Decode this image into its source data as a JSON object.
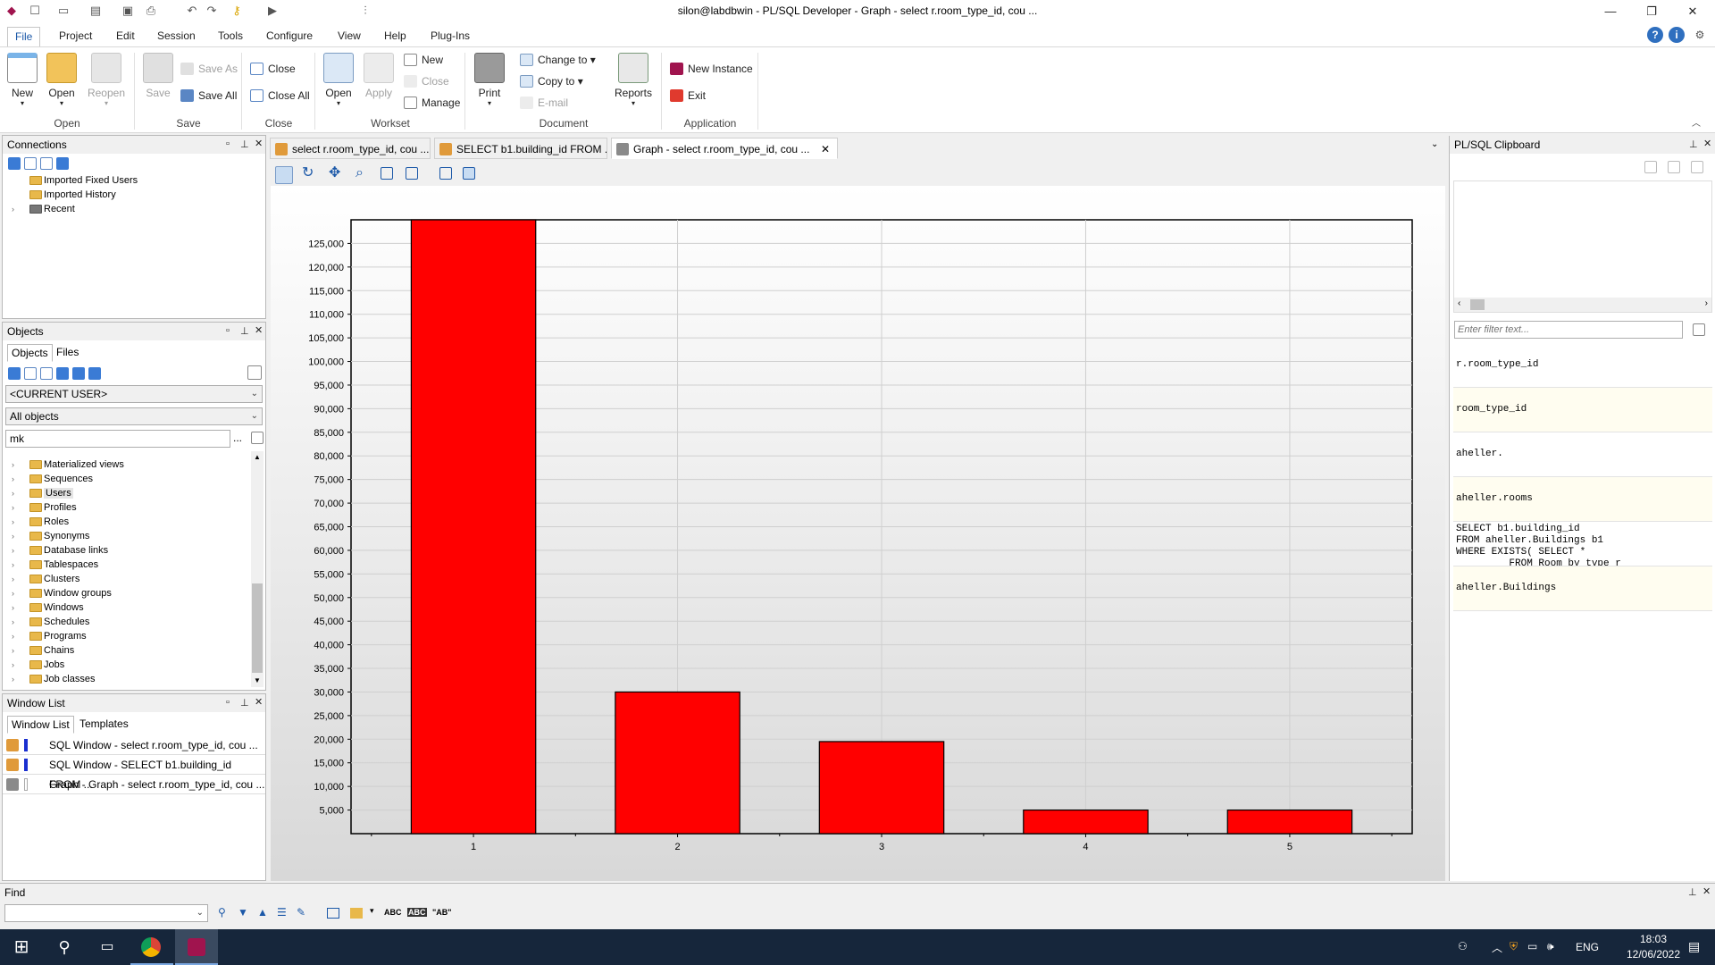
{
  "window": {
    "title": "silon@labdbwin - PL/SQL Developer - Graph - select r.room_type_id, cou ...",
    "minimize": "—",
    "restore": "❐",
    "close": "✕"
  },
  "menu": [
    "File",
    "Project",
    "Edit",
    "Session",
    "Tools",
    "Configure",
    "View",
    "Help",
    "Plug-Ins"
  ],
  "ribbon": {
    "open_group": {
      "label": "Open",
      "new": "New",
      "open": "Open",
      "reopen": "Reopen"
    },
    "save_group": {
      "label": "Save",
      "save": "Save",
      "save_as": "Save As",
      "save_all": "Save All"
    },
    "close_group": {
      "label": "Close",
      "close": "Close",
      "close_all": "Close All"
    },
    "workset_group": {
      "label": "Workset",
      "open": "Open",
      "apply": "Apply",
      "new": "New",
      "close": "Close",
      "manage": "Manage"
    },
    "document_group": {
      "label": "Document",
      "print": "Print",
      "change_to": "Change to",
      "copy_to": "Copy to",
      "email": "E-mail"
    },
    "reports_label": "Reports",
    "application_group": {
      "label": "Application",
      "new_instance": "New Instance",
      "exit": "Exit"
    }
  },
  "connections": {
    "title": "Connections",
    "items": [
      "Imported Fixed Users",
      "Imported History",
      "Recent"
    ]
  },
  "objects": {
    "title": "Objects",
    "tabs": [
      "Objects",
      "Files"
    ],
    "user_select": "<CURRENT USER>",
    "filter_select": "All objects",
    "search_value": "mk",
    "more_btn": "...",
    "tree": [
      "Materialized views",
      "Sequences",
      "Users",
      "Profiles",
      "Roles",
      "Synonyms",
      "Database links",
      "Tablespaces",
      "Clusters",
      "Window groups",
      "Windows",
      "Schedules",
      "Programs",
      "Chains",
      "Jobs",
      "Job classes"
    ]
  },
  "window_list": {
    "title": "Window List",
    "tabs": [
      "Window List",
      "Templates"
    ],
    "items": [
      "SQL Window - select r.room_type_id, cou ...",
      "SQL Window - SELECT b1.building_id FROM ...",
      "Graph - Graph - select r.room_type_id, cou ..."
    ]
  },
  "doc_tabs": [
    "select r.room_type_id, cou ...",
    "SELECT b1.building_id FROM ...",
    "Graph - select r.room_type_id, cou ..."
  ],
  "chart_data": {
    "type": "bar",
    "categories": [
      "1",
      "2",
      "3",
      "4",
      "5"
    ],
    "values": [
      130000,
      30000,
      19500,
      5000,
      5000
    ],
    "ylim": [
      0,
      130000
    ],
    "yticks": [
      "5,000",
      "10,000",
      "15,000",
      "20,000",
      "25,000",
      "30,000",
      "35,000",
      "40,000",
      "45,000",
      "50,000",
      "55,000",
      "60,000",
      "65,000",
      "70,000",
      "75,000",
      "80,000",
      "85,000",
      "90,000",
      "95,000",
      "100,000",
      "105,000",
      "110,000",
      "115,000",
      "120,000",
      "125,000"
    ],
    "bar_color": "#ff0000",
    "grid": true
  },
  "clipboard": {
    "title": "PL/SQL Clipboard",
    "filter_placeholder": "Enter filter text...",
    "items": [
      "r.room_type_id",
      "room_type_id",
      "aheller.",
      "aheller.rooms",
      "SELECT b1.building_id\nFROM aheller.Buildings b1\nWHERE EXISTS( SELECT *\n         FROM Room_by_type r",
      "aheller.Buildings"
    ]
  },
  "find": {
    "title": "Find",
    "abc": "ABC",
    "ab_quote": "\"AB\""
  },
  "taskbar": {
    "lang": "ENG",
    "time": "18:03",
    "date": "12/06/2022"
  },
  "colors": {
    "accent": "#1b58a8",
    "taskbar": "#16263b"
  }
}
